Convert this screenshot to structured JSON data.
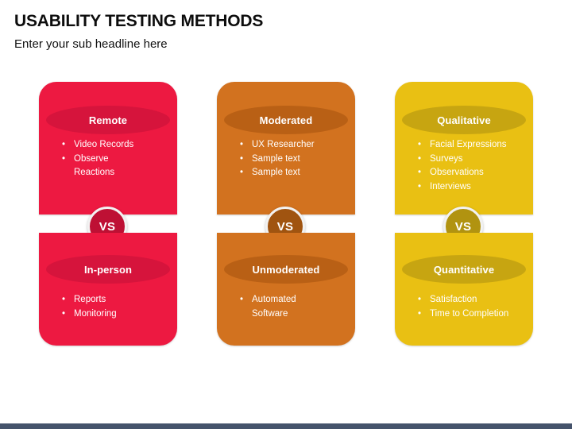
{
  "slide": {
    "title": "USABILITY TESTING METHODS",
    "subtitle": "Enter your sub headline here"
  },
  "vs_label": "VS",
  "columns": [
    {
      "id": "remote-vs-in-person",
      "colors": {
        "card": "#ED1941",
        "ellipse": "#D6143C",
        "vs": "#BE1034"
      },
      "top": {
        "title": "Remote",
        "bullets": [
          "Video Records",
          "Observe Reactions"
        ]
      },
      "bottom": {
        "title": "In-person",
        "bullets": [
          "Reports",
          "Monitoring"
        ]
      }
    },
    {
      "id": "moderated-vs-unmoderated",
      "colors": {
        "card": "#D2721F",
        "ellipse": "#B96015",
        "vs": "#A05410"
      },
      "top": {
        "title": "Moderated",
        "bullets": [
          "UX Researcher",
          "Sample text",
          "Sample text"
        ]
      },
      "bottom": {
        "title": "Unmoderated",
        "bullets": [
          "Automated Software"
        ]
      }
    },
    {
      "id": "qualitative-vs-quantitative",
      "colors": {
        "card": "#E9C013",
        "ellipse": "#C7A511",
        "vs": "#B19310"
      },
      "top": {
        "title": "Qualitative",
        "bullets": [
          "Facial Expressions",
          "Surveys",
          "Observations",
          "Interviews"
        ]
      },
      "bottom": {
        "title": "Quantitative",
        "bullets": [
          "Satisfaction",
          "Time to Completion"
        ]
      }
    }
  ],
  "footer_bar_color": "#45536B"
}
